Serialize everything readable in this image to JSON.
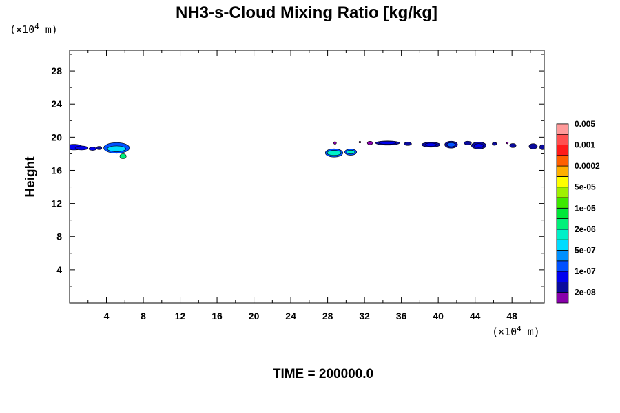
{
  "chart_data": {
    "type": "heatmap",
    "title": "NH3-s-Cloud Mixing Ratio [kg/kg]",
    "xlabel": "",
    "ylabel": "Height",
    "x_unit_prefix": "(×10",
    "x_unit_exp": "4",
    "x_unit_suffix": " m)",
    "y_unit_prefix": "(×10",
    "y_unit_exp": "4",
    "y_unit_suffix": " m)",
    "xlim": [
      0,
      51.5
    ],
    "ylim": [
      0,
      30.5
    ],
    "x_ticks": [
      4,
      8,
      12,
      16,
      20,
      24,
      28,
      32,
      36,
      40,
      44,
      48
    ],
    "y_ticks": [
      4,
      8,
      12,
      16,
      20,
      24,
      28
    ],
    "colorbar": {
      "colors": [
        "#8800aa",
        "#0a0a9c",
        "#0000ee",
        "#0050ff",
        "#0090ff",
        "#00dcff",
        "#00f0c8",
        "#00f07a",
        "#00e83a",
        "#3ee800",
        "#a0f000",
        "#ffff00",
        "#ffb000",
        "#ff6000",
        "#ff1a1a",
        "#ff5050",
        "#ff9a9a"
      ],
      "labels": [
        "2e-08",
        "1e-07",
        "5e-07",
        "2e-06",
        "1e-05",
        "5e-05",
        "0.0002",
        "0.001",
        "0.005"
      ]
    },
    "cloud_patches": [
      {
        "x": 0.5,
        "y": 18.8,
        "rx": 0.9,
        "ry": 0.35,
        "level": 2
      },
      {
        "x": 1.3,
        "y": 18.7,
        "rx": 0.7,
        "ry": 0.25,
        "level": 2
      },
      {
        "x": 2.5,
        "y": 18.6,
        "rx": 0.4,
        "ry": 0.2,
        "level": 2
      },
      {
        "x": 3.2,
        "y": 18.7,
        "rx": 0.3,
        "ry": 0.2,
        "level": 1
      },
      {
        "x": 5.1,
        "y": 18.7,
        "rx": 1.4,
        "ry": 0.65,
        "level": 3
      },
      {
        "x": 5.1,
        "y": 18.6,
        "rx": 1.0,
        "ry": 0.35,
        "level": 5
      },
      {
        "x": 5.8,
        "y": 17.7,
        "rx": 0.35,
        "ry": 0.3,
        "level": 7
      },
      {
        "x": 28.7,
        "y": 18.1,
        "rx": 0.95,
        "ry": 0.5,
        "level": 3
      },
      {
        "x": 28.7,
        "y": 18.1,
        "rx": 0.75,
        "ry": 0.3,
        "level": 6
      },
      {
        "x": 30.5,
        "y": 18.2,
        "rx": 0.65,
        "ry": 0.38,
        "level": 3
      },
      {
        "x": 30.5,
        "y": 18.2,
        "rx": 0.45,
        "ry": 0.22,
        "level": 6
      },
      {
        "x": 28.8,
        "y": 19.3,
        "rx": 0.15,
        "ry": 0.15,
        "level": 0
      },
      {
        "x": 31.5,
        "y": 19.4,
        "rx": 0.1,
        "ry": 0.1,
        "level": 0
      },
      {
        "x": 32.6,
        "y": 19.3,
        "rx": 0.3,
        "ry": 0.2,
        "level": 0
      },
      {
        "x": 34.5,
        "y": 19.3,
        "rx": 1.3,
        "ry": 0.25,
        "level": 1
      },
      {
        "x": 34.5,
        "y": 19.3,
        "rx": 0.9,
        "ry": 0.15,
        "level": 2
      },
      {
        "x": 36.7,
        "y": 19.2,
        "rx": 0.4,
        "ry": 0.2,
        "level": 1
      },
      {
        "x": 39.2,
        "y": 19.1,
        "rx": 1.0,
        "ry": 0.3,
        "level": 1
      },
      {
        "x": 39.2,
        "y": 19.1,
        "rx": 0.6,
        "ry": 0.2,
        "level": 2
      },
      {
        "x": 41.4,
        "y": 19.1,
        "rx": 0.7,
        "ry": 0.42,
        "level": 1
      },
      {
        "x": 41.4,
        "y": 19.1,
        "rx": 0.45,
        "ry": 0.25,
        "level": 3
      },
      {
        "x": 43.2,
        "y": 19.3,
        "rx": 0.4,
        "ry": 0.22,
        "level": 1
      },
      {
        "x": 44.4,
        "y": 19.0,
        "rx": 0.8,
        "ry": 0.42,
        "level": 1
      },
      {
        "x": 44.4,
        "y": 19.0,
        "rx": 0.5,
        "ry": 0.22,
        "level": 2
      },
      {
        "x": 46.1,
        "y": 19.2,
        "rx": 0.25,
        "ry": 0.18,
        "level": 1
      },
      {
        "x": 47.5,
        "y": 19.3,
        "rx": 0.1,
        "ry": 0.1,
        "level": 0
      },
      {
        "x": 48.1,
        "y": 19.0,
        "rx": 0.35,
        "ry": 0.25,
        "level": 1
      },
      {
        "x": 50.3,
        "y": 18.9,
        "rx": 0.45,
        "ry": 0.32,
        "level": 1
      },
      {
        "x": 51.3,
        "y": 18.8,
        "rx": 0.3,
        "ry": 0.3,
        "level": 1
      }
    ],
    "time_label": "TIME = 200000.0",
    "grid": false
  }
}
